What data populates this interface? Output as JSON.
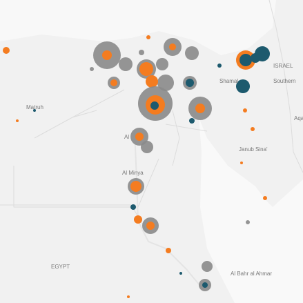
{
  "labels": [
    "ISRAEL",
    "Shamal",
    "Southern",
    "Matruh",
    "Al",
    "Al Minya",
    "Janub Sina'",
    "Aqa",
    "EGYPT",
    "Al Bahr al Ahmar"
  ]
}
